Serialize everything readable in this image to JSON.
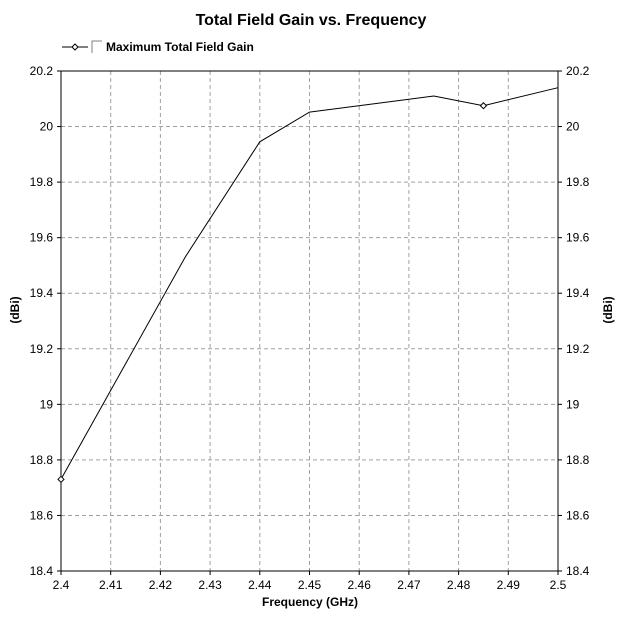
{
  "chart_data": {
    "type": "line",
    "title": "Total Field Gain vs. Frequency",
    "xlabel": "Frequency (GHz)",
    "ylabel": "(dBi)",
    "ylabel_right": "(dBi)",
    "xlim": [
      2.4,
      2.5
    ],
    "ylim": [
      18.4,
      20.2
    ],
    "x_ticks": [
      "2.4",
      "2.41",
      "2.42",
      "2.43",
      "2.44",
      "2.45",
      "2.46",
      "2.47",
      "2.48",
      "2.49",
      "2.5"
    ],
    "y_ticks": [
      "18.4",
      "18.6",
      "18.8",
      "19",
      "19.2",
      "19.4",
      "19.6",
      "19.8",
      "20",
      "20.2"
    ],
    "grid": true,
    "legend_position": "top-left",
    "series": [
      {
        "name": "Maximum Total Field Gain",
        "color": "#000000",
        "x": [
          2.4,
          2.425,
          2.44,
          2.45,
          2.475,
          2.485,
          2.5
        ],
        "y": [
          18.73,
          19.53,
          19.945,
          20.052,
          20.11,
          20.075,
          20.14
        ],
        "marker_indices": [
          0,
          5
        ]
      }
    ]
  }
}
